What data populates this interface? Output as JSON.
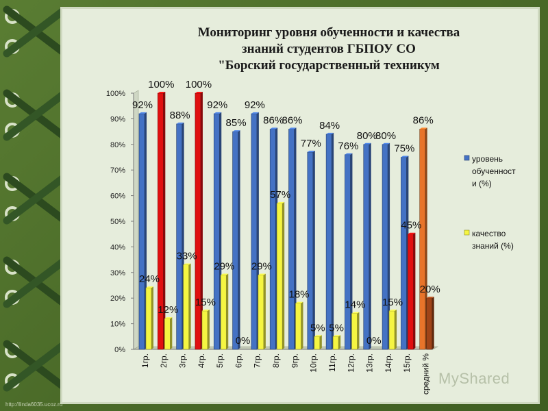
{
  "page": {
    "title_lines": [
      "Мониторинг уровня обученности и качества",
      "знаний студентов ГБПОУ СО",
      "\"Борский государственный техникум"
    ],
    "watermark": "http://linda6035.ucoz.ru",
    "brand": "MyShared"
  },
  "chart_data": {
    "type": "bar",
    "categories": [
      "1гр.",
      "2гр.",
      "3гр.",
      "4гр.",
      "5гр.",
      "6гр.",
      "7гр.",
      "8гр.",
      "9гр.",
      "10гр.",
      "11гр.",
      "12гр.",
      "13гр.",
      "14гр.",
      "15гр.",
      "средний %"
    ],
    "series": [
      {
        "name": "уровень обученности (%)",
        "values": [
          92,
          100,
          88,
          100,
          92,
          85,
          92,
          86,
          86,
          77,
          84,
          76,
          80,
          80,
          75,
          86
        ],
        "labels": [
          "92%",
          "100%",
          "88%",
          "100%",
          "92%",
          "85%",
          "92%",
          "86%",
          "86%",
          "77%",
          "84%",
          "76%",
          "80%",
          "80%",
          "75%",
          "86%"
        ],
        "color": "#4472c4",
        "highlight_colors": {
          "1": "#e01010",
          "3": "#e01010",
          "15": "#e8742a"
        }
      },
      {
        "name": "качество знаний (%)",
        "values": [
          24,
          12,
          33,
          15,
          29,
          0,
          29,
          57,
          18,
          5,
          5,
          14,
          0,
          15,
          45,
          20
        ],
        "labels": [
          "24%",
          "12%",
          "33%",
          "15%",
          "29%",
          "0%",
          "29%",
          "57%",
          "18%",
          "5%",
          "5%",
          "14%",
          "0%",
          "15%",
          "45%",
          "20%"
        ],
        "color": "#f5f542",
        "highlight_colors": {
          "14": "#e01010",
          "15": "#a04418"
        }
      }
    ],
    "ylim": [
      0,
      100
    ],
    "yticks": [
      "0%",
      "10%",
      "20%",
      "30%",
      "40%",
      "50%",
      "60%",
      "70%",
      "80%",
      "90%",
      "100%"
    ],
    "legend": {
      "placement": "right",
      "entries": [
        {
          "lines": [
            "уровень",
            "обученност",
            "и (%)"
          ],
          "color": "#4472c4"
        },
        {
          "lines": [
            "качество",
            "знаний (%)"
          ],
          "color": "#f5f542"
        }
      ]
    },
    "grid": false,
    "bar_style": "3d"
  }
}
